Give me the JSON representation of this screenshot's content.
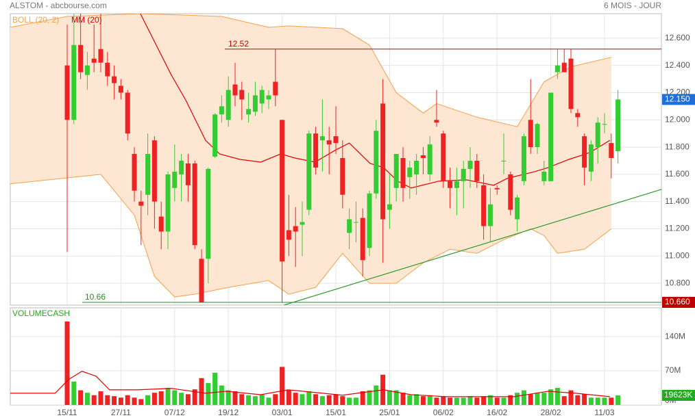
{
  "header": {
    "title": "ALSTOM - abcbourse.com",
    "period": "6 MOIS - JOUR"
  },
  "chart_data": [
    {
      "type": "candlestick",
      "categories": [
        "15/11",
        null,
        null,
        null,
        null,
        null,
        null,
        null,
        "27/11",
        null,
        null,
        null,
        null,
        null,
        null,
        null,
        "07/12",
        null,
        null,
        null,
        null,
        null,
        null,
        null,
        "19/12",
        null,
        null,
        null,
        null,
        null,
        null,
        null,
        "03/01",
        null,
        null,
        null,
        null,
        null,
        null,
        null,
        "15/01",
        null,
        null,
        null,
        null,
        null,
        null,
        null,
        "25/01",
        null,
        null,
        null,
        null,
        null,
        null,
        null,
        "06/02",
        null,
        null,
        null,
        null,
        null,
        null,
        null,
        "16/02",
        null,
        null,
        null,
        null,
        null,
        null,
        null,
        "28/02",
        null,
        null,
        null,
        null,
        null,
        null,
        null,
        "11/03",
        null,
        null
      ],
      "open": [
        12.4,
        12.0,
        12.55,
        12.33,
        12.45,
        12.52,
        12.42,
        12.32,
        12.25,
        12.2,
        11.75,
        11.4,
        11.45,
        11.85,
        11.29,
        11.18,
        11.5,
        11.6,
        11.68,
        11.68,
        10.98,
        10.98,
        11.73,
        12.04,
        12.0,
        12.26,
        12.22,
        12.04,
        12.06,
        12.12,
        12.15,
        12.28,
        12.0,
        11.19,
        11.22,
        11.23,
        11.34,
        11.9,
        11.85,
        11.85,
        11.88,
        11.72,
        11.17,
        11.25,
        11.28,
        11.06,
        11.46,
        12.12,
        11.34,
        11.5,
        11.72,
        11.58,
        11.6,
        11.74,
        11.6,
        12.0,
        11.9,
        11.55,
        11.5,
        11.55,
        11.64,
        11.7,
        11.52,
        11.22,
        11.5,
        11.7,
        11.6,
        11.27,
        11.55,
        12.0,
        11.8,
        11.55,
        11.55,
        12.35,
        12.42,
        12.45,
        12.05,
        11.88,
        11.62,
        11.8,
        11.97,
        11.83,
        11.77
      ],
      "high": [
        12.7,
        12.78,
        12.78,
        12.5,
        12.7,
        12.78,
        12.5,
        12.4,
        12.3,
        12.22,
        11.8,
        11.48,
        11.9,
        11.88,
        11.4,
        11.62,
        11.82,
        11.75,
        11.75,
        11.7,
        11.05,
        11.65,
        12.05,
        12.18,
        12.32,
        12.42,
        12.28,
        12.2,
        12.28,
        12.25,
        12.22,
        12.52,
        12.0,
        11.45,
        11.36,
        11.4,
        11.92,
        11.95,
        12.15,
        11.95,
        12.1,
        11.85,
        11.35,
        11.4,
        11.35,
        11.48,
        12.0,
        12.3,
        11.6,
        11.75,
        11.8,
        11.7,
        11.75,
        11.8,
        11.88,
        12.22,
        11.92,
        11.65,
        11.65,
        11.7,
        11.8,
        11.75,
        11.6,
        11.5,
        11.52,
        11.9,
        11.62,
        11.45,
        11.9,
        12.3,
        11.98,
        11.7,
        12.2,
        12.52,
        12.52,
        12.52,
        12.08,
        11.9,
        11.85,
        12.02,
        12.05,
        11.9,
        12.22
      ],
      "low": [
        11.03,
        11.97,
        12.3,
        12.22,
        12.35,
        12.35,
        12.25,
        12.15,
        12.15,
        11.85,
        11.4,
        11.08,
        11.3,
        11.2,
        11.05,
        11.05,
        11.4,
        11.4,
        11.4,
        11.05,
        10.66,
        10.8,
        11.72,
        11.98,
        11.95,
        12.1,
        12.0,
        11.98,
        12.03,
        12.05,
        12.08,
        12.1,
        10.66,
        11.0,
        10.92,
        11.0,
        11.3,
        11.6,
        11.62,
        11.6,
        11.75,
        11.35,
        11.05,
        11.1,
        10.85,
        11.0,
        11.42,
        10.95,
        11.2,
        11.4,
        11.4,
        11.42,
        11.45,
        11.6,
        11.55,
        11.95,
        11.5,
        11.35,
        11.3,
        11.35,
        11.5,
        11.5,
        11.12,
        11.1,
        11.45,
        11.6,
        11.3,
        11.18,
        11.52,
        11.75,
        11.75,
        11.52,
        11.55,
        12.3,
        12.35,
        12.05,
        11.95,
        11.52,
        11.55,
        11.68,
        11.9,
        11.57,
        11.68
      ],
      "close": [
        12.0,
        12.55,
        12.35,
        12.4,
        12.42,
        12.42,
        12.32,
        12.27,
        12.2,
        11.9,
        11.48,
        11.37,
        11.75,
        11.4,
        11.18,
        11.6,
        11.62,
        11.7,
        11.52,
        11.08,
        10.66,
        11.64,
        12.04,
        12.1,
        12.22,
        12.18,
        12.15,
        12.08,
        12.18,
        12.22,
        12.18,
        12.18,
        10.96,
        11.12,
        11.18,
        11.25,
        11.9,
        11.65,
        11.88,
        11.82,
        11.83,
        11.45,
        11.27,
        11.25,
        10.97,
        11.46,
        11.92,
        11.27,
        11.38,
        11.75,
        11.5,
        11.65,
        11.7,
        11.72,
        11.82,
        11.98,
        11.55,
        11.5,
        11.55,
        11.64,
        11.7,
        11.55,
        11.22,
        11.38,
        11.49,
        11.7,
        11.34,
        11.43,
        11.88,
        11.8,
        11.97,
        11.62,
        12.2,
        12.4,
        12.35,
        12.08,
        12.02,
        11.65,
        11.82,
        11.98,
        11.97,
        11.72,
        12.15
      ],
      "up_color": "#33cc33",
      "down_color": "#ee2222",
      "series": [
        {
          "name": "BOLL (20, 2)",
          "color": "#f5a04a",
          "fill": "#fde6d2",
          "upper_x": [
            -8.5,
            0,
            11,
            23,
            30,
            33,
            41,
            45,
            49,
            53,
            55,
            61,
            67,
            71,
            75,
            81
          ],
          "upper": [
            12.68,
            12.76,
            12.78,
            12.76,
            12.68,
            12.69,
            12.67,
            12.55,
            12.2,
            12.05,
            12.12,
            12.02,
            11.95,
            12.28,
            12.39,
            12.46
          ],
          "lower_x": [
            -8.5,
            5,
            10,
            13,
            16,
            19,
            24,
            30,
            33,
            37,
            41,
            45,
            49,
            53,
            57,
            61,
            65,
            69,
            71,
            73,
            77,
            81
          ],
          "lower": [
            11.53,
            11.6,
            11.3,
            10.85,
            10.7,
            10.72,
            10.77,
            10.82,
            10.72,
            10.77,
            11.02,
            10.8,
            10.8,
            10.95,
            11.05,
            11.02,
            11.12,
            11.2,
            11.15,
            11.02,
            11.05,
            11.2
          ]
        },
        {
          "name": "MM (20)",
          "color": "#e00000",
          "x": [
            10.9,
            15.5,
            17.6,
            20.6,
            22.7,
            25.7,
            28.8,
            31.8,
            33.9,
            36.9,
            40,
            42,
            45.1,
            47.1,
            49.2,
            51.2,
            55.3,
            59.4,
            63.5,
            65.5,
            69.6,
            71.6,
            74.7,
            77.8,
            80.8
          ],
          "values": [
            12.78,
            12.33,
            12.15,
            11.85,
            11.75,
            11.71,
            11.69,
            11.75,
            11.72,
            11.69,
            11.78,
            11.83,
            11.68,
            11.65,
            11.55,
            11.5,
            11.55,
            11.56,
            11.52,
            11.57,
            11.62,
            11.65,
            11.71,
            11.76,
            11.85
          ]
        }
      ],
      "hlines": [
        {
          "value": 12.52,
          "color": "#c00000"
        },
        {
          "value": 10.66,
          "label": "10.660",
          "color": "#2a8a2a",
          "box_color": "#c00000"
        }
      ],
      "trendline": {
        "x": [
          32.3,
          88.5
        ],
        "values": [
          10.64,
          11.49
        ],
        "color": "#2a9a2a"
      },
      "last_price": {
        "value": 12.15,
        "label": "12.150",
        "color": "#1f6fd6"
      },
      "ylim": [
        10.64,
        12.78
      ],
      "yticks": [
        {
          "value": 12.6,
          "label": "12.600"
        },
        {
          "value": 12.4,
          "label": "12.400"
        },
        {
          "value": 12.2,
          "label": "12.200"
        },
        {
          "value": 12.0,
          "label": "12.000"
        },
        {
          "value": 11.8,
          "label": "11.800"
        },
        {
          "value": 11.6,
          "label": "11.600"
        },
        {
          "value": 11.4,
          "label": "11.400"
        },
        {
          "value": 11.2,
          "label": "11.200"
        },
        {
          "value": 11.0,
          "label": "11.000"
        },
        {
          "value": 10.8,
          "label": "10.800"
        }
      ],
      "grid": true
    },
    {
      "type": "bar",
      "title": "VOLUMECASH",
      "values": [
        171,
        48,
        30,
        25,
        20,
        28,
        20,
        18,
        15,
        20,
        15,
        12,
        20,
        25,
        28,
        35,
        30,
        25,
        22,
        32,
        55,
        45,
        66,
        40,
        30,
        28,
        22,
        20,
        18,
        22,
        15,
        22,
        78,
        30,
        25,
        22,
        28,
        22,
        18,
        20,
        22,
        18,
        15,
        15,
        28,
        30,
        40,
        62,
        30,
        30,
        25,
        20,
        22,
        18,
        20,
        15,
        18,
        15,
        15,
        15,
        18,
        15,
        18,
        20,
        15,
        15,
        20,
        25,
        30,
        22,
        25,
        25,
        32,
        35,
        18,
        30,
        20,
        22,
        15,
        15,
        15,
        15,
        19.623
      ],
      "last_value": {
        "value": 19.623,
        "label": "19623K",
        "color": "#22aa22"
      },
      "series": [
        {
          "color": "#e00000",
          "x": [
            -8.5,
            -1.8,
            0.2,
            2.2,
            4.3,
            6.3,
            10.4,
            15.5,
            20.6,
            23.7,
            28.8,
            32.9,
            35.9,
            41,
            47.1,
            51.2,
            56.3,
            66.5,
            71.6,
            75.7,
            80.8
          ],
          "values": [
            24,
            24,
            52,
            69,
            59,
            31,
            31,
            34,
            24,
            28,
            21,
            31,
            27,
            20,
            31,
            21,
            17,
            17,
            28,
            24,
            17
          ]
        }
      ],
      "ylim": [
        0,
        199
      ],
      "yticks": [
        {
          "value": 0,
          "label": "0M"
        },
        {
          "value": 70,
          "label": "70M"
        },
        {
          "value": 140,
          "label": "140M"
        }
      ],
      "grid": true
    }
  ]
}
